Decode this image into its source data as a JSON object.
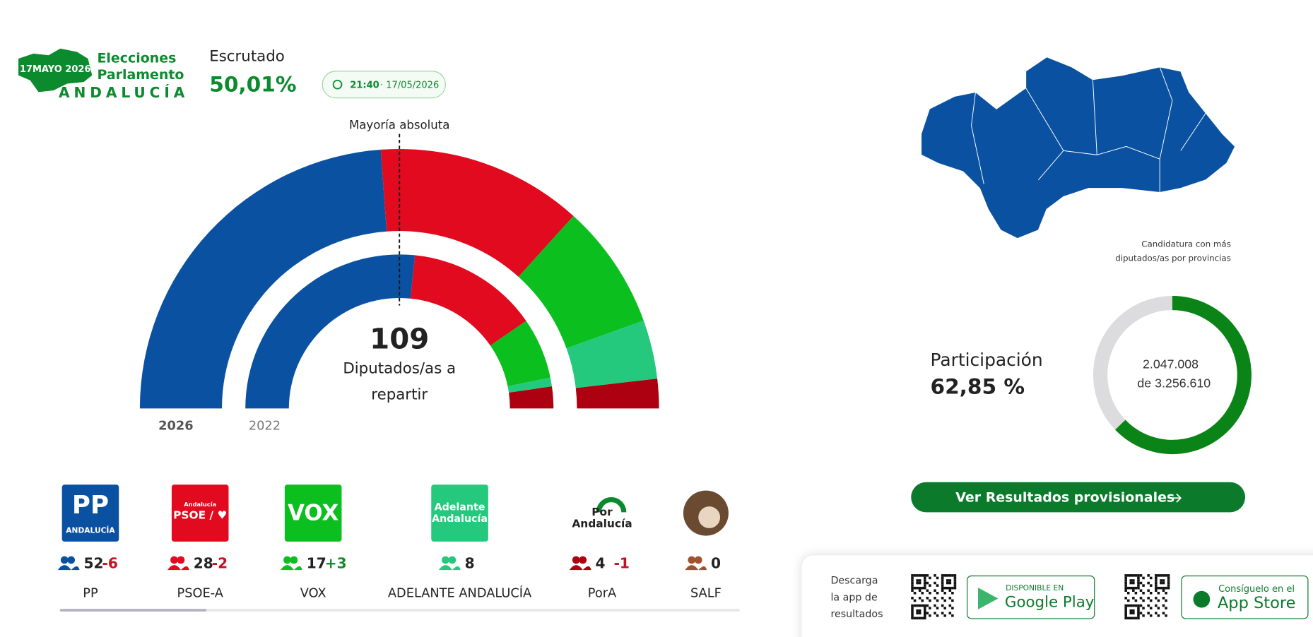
{
  "header": {
    "logo": {
      "date": "17MAYO 2026",
      "line1": "Elecciones",
      "line2": "Parlamento",
      "region": "ANDALUCÍA"
    },
    "counted_label": "Escrutado",
    "counted": "50,01%",
    "time": "21:40",
    "date": "· 17/05/2026"
  },
  "hemicycle": {
    "majority_label": "Mayoría absoluta",
    "total": 109,
    "total_label": [
      "Diputados/as a",
      "repartir"
    ],
    "year_current": "2026",
    "year_previous": "2022"
  },
  "parties": [
    {
      "name": "PP",
      "logo": [
        "PP",
        "ANDALUCÍA"
      ],
      "color": "#0a52a1",
      "seats": 52,
      "change": "-6",
      "seats_2022": 58
    },
    {
      "name": "PSOE-A",
      "logo": [
        "Andalucía",
        "PSOE / ♥"
      ],
      "color": "#e20a1f",
      "seats": 28,
      "change": "-2",
      "seats_2022": 30
    },
    {
      "name": "VOX",
      "logo": [
        "VOX"
      ],
      "color": "#0bbf1f",
      "seats": 17,
      "change": "+3",
      "seats_2022": 14
    },
    {
      "name": "ADELANTE ANDALUCÍA",
      "logo": [
        "Adelante",
        "Andalucía"
      ],
      "color": "#25c97d",
      "seats": 8,
      "change": null,
      "seats_2022": 2
    },
    {
      "name": "PorA",
      "logo": [
        "Por",
        "Andalucía"
      ],
      "color": "#ad0010",
      "seats": 4,
      "change": "-1",
      "seats_2022": 5
    },
    {
      "name": "SALF",
      "logo": [],
      "color": "#a0522d",
      "seats": 0,
      "change": null,
      "seats_2022": 0
    }
  ],
  "map": {
    "color": "#0a52a1",
    "caption": [
      "Candidatura con más",
      "diputados/as por provincias"
    ]
  },
  "participation": {
    "label": "Participación",
    "value": 62.85,
    "value_label": "62,85 %",
    "votes": "2.047.008",
    "census": "de 3.256.610"
  },
  "button": "Ver Resultados provisionales",
  "app": {
    "text": [
      "Descarga",
      "la app de",
      "resultados"
    ],
    "google": [
      "DISPONIBLE EN",
      "Google Play"
    ],
    "apple": [
      "Consíguelo en el",
      "App Store"
    ]
  }
}
